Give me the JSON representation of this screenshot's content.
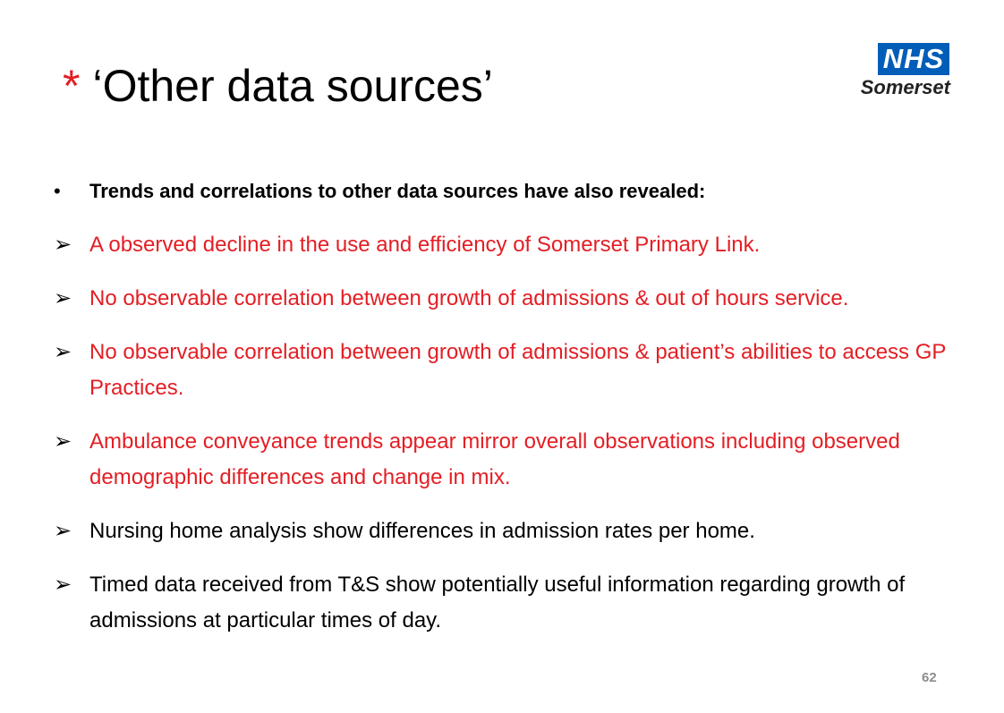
{
  "title": {
    "star": "*",
    "text": "‘Other data sources’"
  },
  "logo": {
    "nhs": "NHS",
    "name": "Somerset"
  },
  "intro": {
    "bullet": "•",
    "text": "Trends and correlations to other data sources have also revealed:"
  },
  "items": [
    {
      "marker": "➢",
      "text": "A observed decline in the use and efficiency of Somerset Primary Link.",
      "color": "#e31e24"
    },
    {
      "marker": "➢",
      "text": "No observable correlation between growth of admissions & out of hours service.",
      "color": "#e31e24"
    },
    {
      "marker": "➢",
      "text": "No observable correlation between growth of admissions & patient’s abilities to access GP Practices.",
      "color": "#e31e24"
    },
    {
      "marker": "➢",
      "text": "Ambulance conveyance trends appear mirror overall observations including  observed demographic differences and change in mix.",
      "color": "#e31e24"
    },
    {
      "marker": "➢",
      "text": "Nursing home analysis show differences in admission rates per home.",
      "color": "#000000"
    },
    {
      "marker": "➢",
      "text": "Timed data received from T&S show potentially useful information regarding growth of admissions at particular times of day.",
      "color": "#000000"
    }
  ],
  "page_number": "62"
}
